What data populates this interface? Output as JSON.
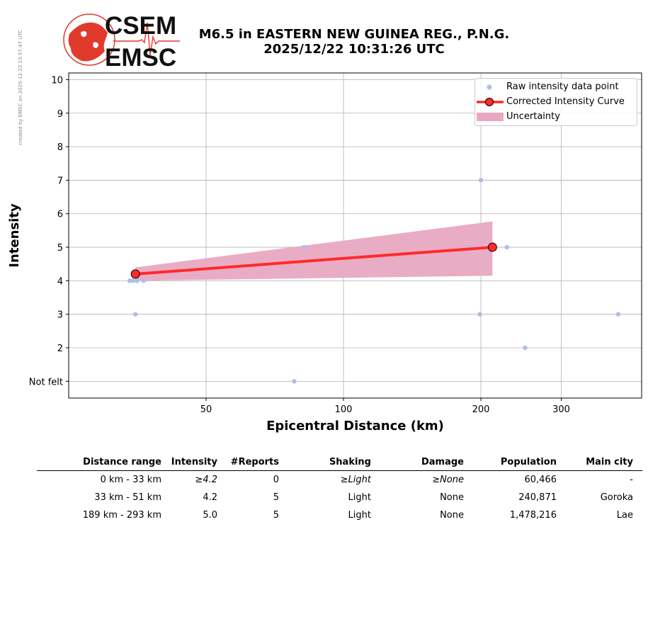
{
  "credit": "created by EMSC on 2025-12-22 15:57:47 UTC",
  "logo": {
    "line1": "CSEM",
    "line2": "EMSC",
    "color": "#e03a2c"
  },
  "title": {
    "line1": "M6.5 in EASTERN NEW GUINEA REG., P.N.G.",
    "line2": "2025/12/22 10:31:26 UTC"
  },
  "chart_data": {
    "type": "scatter",
    "xlabel": "Epicentral Distance (km)",
    "ylabel": "Intensity",
    "x_scale": "log",
    "xlim": [
      25,
      450
    ],
    "ylim": [
      0.5,
      10.2
    ],
    "x_ticks": [
      50,
      100,
      200,
      300
    ],
    "y_ticks": [
      1,
      2,
      3,
      4,
      5,
      6,
      7,
      8,
      9,
      10
    ],
    "y_tick_labels": [
      "Not felt",
      "2",
      "3",
      "4",
      "5",
      "6",
      "7",
      "8",
      "9",
      "10"
    ],
    "grid": true,
    "legend_position": "top-right",
    "series": [
      {
        "name": "Raw intensity data point",
        "kind": "points",
        "color": "#aebde9",
        "points": [
          [
            34,
            4
          ],
          [
            34.6,
            4
          ],
          [
            35.3,
            4
          ],
          [
            36.5,
            4
          ],
          [
            35.0,
            3
          ],
          [
            78,
            1
          ],
          [
            82,
            5
          ],
          [
            190,
            5
          ],
          [
            200,
            7
          ],
          [
            199,
            3
          ],
          [
            228,
            5
          ],
          [
            250,
            2
          ],
          [
            400,
            3
          ]
        ]
      },
      {
        "name": "Corrected Intensity Curve",
        "kind": "line",
        "color": "#ff2a2a",
        "points": [
          [
            35,
            4.2
          ],
          [
            212,
            5.0
          ]
        ]
      },
      {
        "name": "Uncertainty",
        "kind": "band",
        "color": "#e8a8c2",
        "x": [
          35,
          212
        ],
        "lower": [
          4.0,
          4.15
        ],
        "upper": [
          4.4,
          5.77
        ]
      }
    ]
  },
  "table": {
    "headers": [
      "Distance range",
      "Intensity",
      "#Reports",
      "Shaking",
      "Damage",
      "Population",
      "Main city"
    ],
    "rows": [
      {
        "cells": [
          "0 km -   33 km",
          "≥4.2",
          "0",
          "≥Light",
          "≥None",
          "60,466",
          "-"
        ],
        "italic": [
          1,
          3,
          4
        ]
      },
      {
        "cells": [
          "33 km -   51 km",
          "4.2",
          "5",
          "Light",
          "None",
          "240,871",
          "Goroka"
        ],
        "italic": []
      },
      {
        "cells": [
          "189 km -  293 km",
          "5.0",
          "5",
          "Light",
          "None",
          "1,478,216",
          "Lae"
        ],
        "italic": []
      }
    ]
  }
}
